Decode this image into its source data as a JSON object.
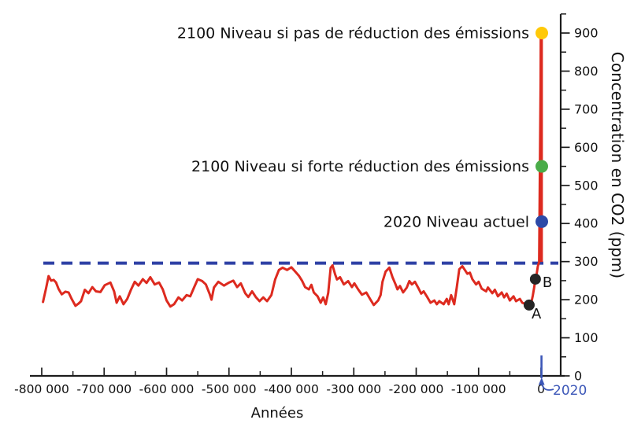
{
  "colors": {
    "axis": "#1c1c1c",
    "text": "#111111",
    "curve_red": "#dd2a1f",
    "dashed_blue": "#2f41a5",
    "dot_yellow": "#ffc908",
    "dot_green": "#4aac49",
    "dot_blue": "#2c49a7",
    "marker_dark": "#252525",
    "year2020_blue": "#3c57b8"
  },
  "chart_data": {
    "type": "line",
    "title": "",
    "xlabel": "Années",
    "ylabel": "Concentration en CO2 (ppm)",
    "xlim_kyr": [
      -818,
      32
    ],
    "ylim": [
      0,
      950
    ],
    "grid": false,
    "legend_position": "none",
    "x_ticks": [
      {
        "value_kyr": -800,
        "label": "-800 000"
      },
      {
        "value_kyr": -700,
        "label": "-700 000"
      },
      {
        "value_kyr": -600,
        "label": "-600 000"
      },
      {
        "value_kyr": -500,
        "label": "-500 000"
      },
      {
        "value_kyr": -400,
        "label": "-400 000"
      },
      {
        "value_kyr": -300,
        "label": "-300 000"
      },
      {
        "value_kyr": -200,
        "label": "-200 000"
      },
      {
        "value_kyr": -100,
        "label": "-100 000"
      },
      {
        "value_kyr": 0,
        "label": "0"
      }
    ],
    "x_minor_ticks_kyr": [
      -750,
      -650,
      -550,
      -450,
      -350,
      -250,
      -150,
      -50
    ],
    "y_ticks": [
      {
        "value": 0,
        "label": "0"
      },
      {
        "value": 100,
        "label": "100"
      },
      {
        "value": 200,
        "label": "200"
      },
      {
        "value": 300,
        "label": "300"
      },
      {
        "value": 400,
        "label": "400"
      },
      {
        "value": 500,
        "label": "500"
      },
      {
        "value": 600,
        "label": "600"
      },
      {
        "value": 700,
        "label": "700"
      },
      {
        "value": 800,
        "label": "800"
      },
      {
        "value": 900,
        "label": "900"
      }
    ],
    "y_minor_ticks": [
      50,
      150,
      250,
      350,
      450,
      550,
      650,
      750,
      850,
      950
    ],
    "dashed_reference_ppm": 296,
    "series": [
      {
        "name": "CO2 (ppm)",
        "color": "#dd2a1f",
        "points_kyr_ppm": [
          [
            -798,
            194
          ],
          [
            -793,
            230
          ],
          [
            -789,
            262
          ],
          [
            -785,
            250
          ],
          [
            -781,
            252
          ],
          [
            -777,
            245
          ],
          [
            -773,
            228
          ],
          [
            -768,
            214
          ],
          [
            -762,
            221
          ],
          [
            -757,
            219
          ],
          [
            -752,
            202
          ],
          [
            -746,
            184
          ],
          [
            -741,
            190
          ],
          [
            -737,
            196
          ],
          [
            -731,
            226
          ],
          [
            -725,
            217
          ],
          [
            -719,
            233
          ],
          [
            -713,
            222
          ],
          [
            -706,
            220
          ],
          [
            -699,
            238
          ],
          [
            -690,
            245
          ],
          [
            -684,
            222
          ],
          [
            -680,
            192
          ],
          [
            -675,
            209
          ],
          [
            -669,
            188
          ],
          [
            -663,
            202
          ],
          [
            -657,
            226
          ],
          [
            -651,
            247
          ],
          [
            -645,
            237
          ],
          [
            -638,
            254
          ],
          [
            -632,
            244
          ],
          [
            -626,
            259
          ],
          [
            -619,
            240
          ],
          [
            -612,
            245
          ],
          [
            -606,
            227
          ],
          [
            -600,
            198
          ],
          [
            -594,
            182
          ],
          [
            -588,
            188
          ],
          [
            -581,
            206
          ],
          [
            -575,
            198
          ],
          [
            -568,
            212
          ],
          [
            -562,
            209
          ],
          [
            -556,
            232
          ],
          [
            -550,
            254
          ],
          [
            -543,
            249
          ],
          [
            -537,
            240
          ],
          [
            -531,
            215
          ],
          [
            -528,
            200
          ],
          [
            -524,
            232
          ],
          [
            -517,
            247
          ],
          [
            -508,
            237
          ],
          [
            -501,
            244
          ],
          [
            -493,
            250
          ],
          [
            -487,
            233
          ],
          [
            -481,
            243
          ],
          [
            -474,
            217
          ],
          [
            -469,
            207
          ],
          [
            -463,
            222
          ],
          [
            -457,
            207
          ],
          [
            -451,
            196
          ],
          [
            -445,
            206
          ],
          [
            -439,
            196
          ],
          [
            -432,
            212
          ],
          [
            -426,
            253
          ],
          [
            -420,
            278
          ],
          [
            -414,
            284
          ],
          [
            -407,
            278
          ],
          [
            -400,
            285
          ],
          [
            -394,
            274
          ],
          [
            -388,
            263
          ],
          [
            -383,
            250
          ],
          [
            -378,
            233
          ],
          [
            -372,
            227
          ],
          [
            -368,
            239
          ],
          [
            -364,
            219
          ],
          [
            -358,
            209
          ],
          [
            -353,
            192
          ],
          [
            -349,
            206
          ],
          [
            -345,
            188
          ],
          [
            -341,
            218
          ],
          [
            -337,
            284
          ],
          [
            -334,
            290
          ],
          [
            -330,
            267
          ],
          [
            -327,
            253
          ],
          [
            -322,
            259
          ],
          [
            -316,
            240
          ],
          [
            -309,
            249
          ],
          [
            -303,
            233
          ],
          [
            -299,
            243
          ],
          [
            -293,
            227
          ],
          [
            -287,
            213
          ],
          [
            -280,
            219
          ],
          [
            -274,
            202
          ],
          [
            -268,
            186
          ],
          [
            -261,
            198
          ],
          [
            -257,
            212
          ],
          [
            -254,
            247
          ],
          [
            -249,
            274
          ],
          [
            -243,
            284
          ],
          [
            -238,
            259
          ],
          [
            -233,
            240
          ],
          [
            -230,
            227
          ],
          [
            -226,
            236
          ],
          [
            -221,
            219
          ],
          [
            -215,
            232
          ],
          [
            -211,
            249
          ],
          [
            -207,
            240
          ],
          [
            -202,
            247
          ],
          [
            -196,
            229
          ],
          [
            -192,
            216
          ],
          [
            -188,
            222
          ],
          [
            -182,
            206
          ],
          [
            -177,
            192
          ],
          [
            -171,
            198
          ],
          [
            -167,
            188
          ],
          [
            -163,
            196
          ],
          [
            -156,
            188
          ],
          [
            -151,
            202
          ],
          [
            -148,
            188
          ],
          [
            -144,
            212
          ],
          [
            -139,
            188
          ],
          [
            -135,
            232
          ],
          [
            -131,
            280
          ],
          [
            -126,
            288
          ],
          [
            -122,
            278
          ],
          [
            -118,
            268
          ],
          [
            -114,
            271
          ],
          [
            -110,
            254
          ],
          [
            -104,
            240
          ],
          [
            -100,
            247
          ],
          [
            -95,
            229
          ],
          [
            -88,
            222
          ],
          [
            -85,
            232
          ],
          [
            -78,
            217
          ],
          [
            -74,
            226
          ],
          [
            -69,
            209
          ],
          [
            -63,
            219
          ],
          [
            -59,
            206
          ],
          [
            -55,
            216
          ],
          [
            -50,
            198
          ],
          [
            -44,
            209
          ],
          [
            -40,
            196
          ],
          [
            -34,
            202
          ],
          [
            -30,
            192
          ],
          [
            -24,
            188
          ],
          [
            -19,
            186
          ],
          [
            -15,
            196
          ],
          [
            -13,
            212
          ],
          [
            -11,
            232
          ],
          [
            -9,
            254
          ],
          [
            -7,
            268
          ],
          [
            -5,
            288
          ],
          [
            -3,
            299
          ],
          [
            0,
            900
          ]
        ]
      }
    ],
    "spike_top_ppm": 900,
    "point_markers": [
      {
        "label": "A",
        "kyr": -19,
        "ppm": 186
      },
      {
        "label": "B",
        "kyr": -9,
        "ppm": 254
      }
    ],
    "level_markers": [
      {
        "label": "2100 Niveau si pas de réduction des émissions",
        "ppm": 900,
        "color": "#ffc908"
      },
      {
        "label": "2100 Niveau si forte réduction des émissions",
        "ppm": 550,
        "color": "#4aac49"
      },
      {
        "label": "2020 Niveau actuel",
        "ppm": 405,
        "color": "#2c49a7"
      }
    ],
    "x_axis_year_label": {
      "text": "2020",
      "color": "#3c57b8"
    }
  }
}
